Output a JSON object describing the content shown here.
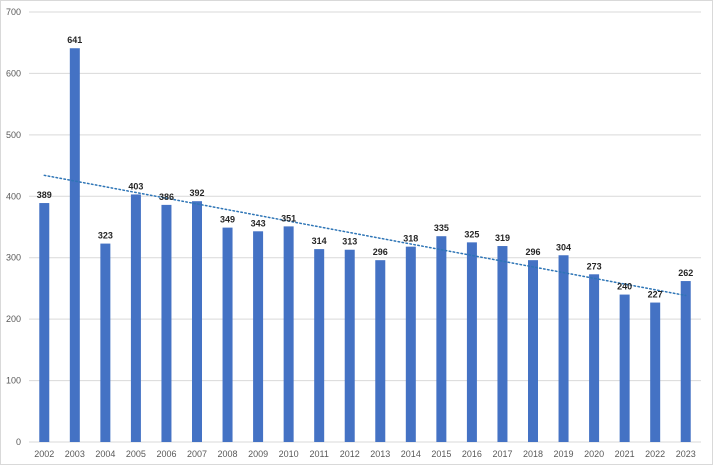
{
  "chart_data": {
    "type": "bar",
    "title": "",
    "xlabel": "",
    "ylabel": "",
    "categories": [
      "2002",
      "2003",
      "2004",
      "2005",
      "2006",
      "2007",
      "2008",
      "2009",
      "2010",
      "2011",
      "2012",
      "2013",
      "2014",
      "2015",
      "2016",
      "2017",
      "2018",
      "2019",
      "2020",
      "2021",
      "2022",
      "2023"
    ],
    "values": [
      389,
      641,
      323,
      403,
      386,
      392,
      349,
      343,
      351,
      314,
      313,
      296,
      318,
      335,
      325,
      319,
      296,
      304,
      273,
      240,
      227,
      262
    ],
    "ylim": [
      0,
      700
    ],
    "yticks": [
      0,
      100,
      200,
      300,
      400,
      500,
      600,
      700
    ],
    "grid": true,
    "legend": "none",
    "data_labels": true,
    "trendline": {
      "type": "linear",
      "style": "dotted",
      "color": "#2e75b6"
    },
    "bar_color": "#4472c4",
    "grid_color": "#d9d9d9"
  }
}
